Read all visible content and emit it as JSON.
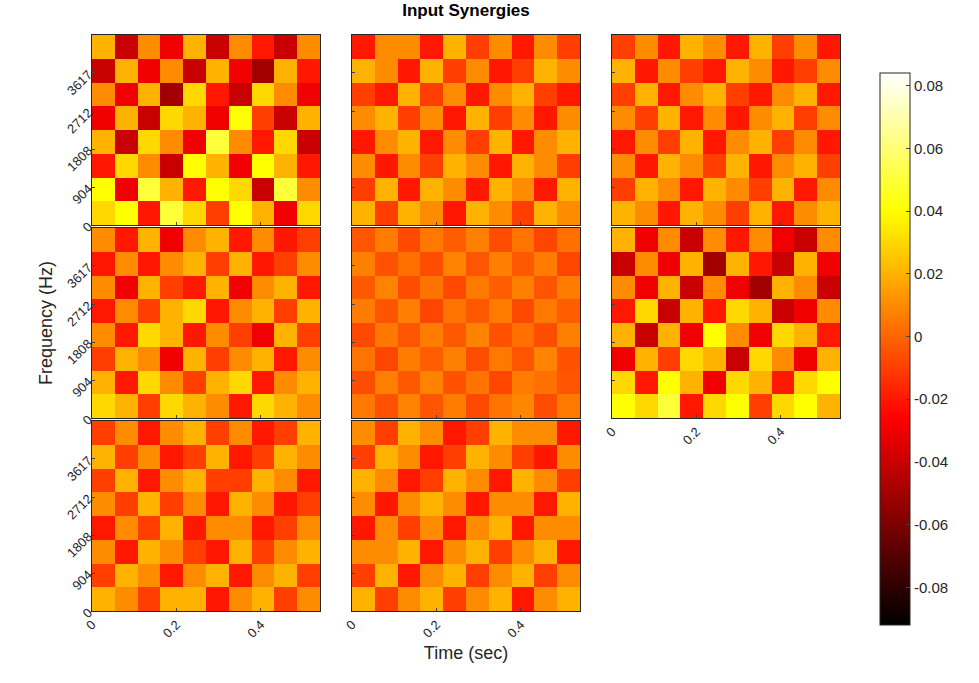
{
  "chart_data": {
    "type": "heatmap",
    "title": "Input Synergies",
    "x_label": "Time (sec)",
    "y_label": "Frequency (Hz)",
    "xlim": [
      0,
      0.54
    ],
    "ylim": [
      0,
      4521
    ],
    "xticks": [
      0,
      0.2,
      0.4
    ],
    "yticks": [
      0,
      904,
      1808,
      2712,
      3617
    ],
    "x": [
      0.027,
      0.081,
      0.135,
      0.189,
      0.243,
      0.297,
      0.351,
      0.405,
      0.459,
      0.513
    ],
    "y": [
      282.6,
      847.7,
      1412.8,
      1978.0,
      2543.1,
      3108.2,
      3673.3,
      4238.4
    ],
    "colorbar": {
      "range": [
        -0.092,
        0.084
      ],
      "ticks": [
        -0.08,
        -0.06,
        -0.04,
        -0.02,
        0,
        0.02,
        0.04,
        0.06,
        0.08
      ]
    },
    "panels": [
      {
        "tick_labels": "y",
        "cells": [
          [
            0.03,
            0.04,
            -0.02,
            0.05,
            0.03,
            -0.01,
            0.04,
            0.02,
            -0.03,
            0.03
          ],
          [
            0.04,
            -0.03,
            0.05,
            0.02,
            -0.02,
            0.04,
            0.03,
            -0.04,
            0.05,
            0.01
          ],
          [
            -0.02,
            0.03,
            0.01,
            -0.04,
            0.04,
            0.02,
            -0.03,
            0.04,
            0.02,
            -0.02
          ],
          [
            0.02,
            -0.04,
            0.03,
            0.01,
            -0.03,
            0.05,
            0.01,
            -0.02,
            0.03,
            -0.04
          ],
          [
            -0.03,
            0.02,
            -0.04,
            0.03,
            0.02,
            -0.03,
            0.04,
            -0.01,
            -0.04,
            0.02
          ],
          [
            0.01,
            -0.03,
            0.02,
            -0.05,
            0.03,
            -0.02,
            -0.04,
            0.03,
            0.01,
            -0.03
          ],
          [
            -0.04,
            0.02,
            -0.03,
            0.01,
            -0.04,
            0.02,
            -0.03,
            -0.05,
            0.02,
            -0.02
          ],
          [
            0.02,
            -0.04,
            0.01,
            -0.03,
            0.02,
            -0.04,
            0.01,
            -0.02,
            -0.04,
            0.01
          ]
        ]
      },
      {
        "tick_labels": false,
        "cells": [
          [
            0.02,
            -0.01,
            0.02,
            0.01,
            -0.02,
            0.02,
            0.01,
            -0.01,
            0.02,
            0.01
          ],
          [
            -0.01,
            0.02,
            -0.02,
            0.02,
            0.01,
            -0.02,
            0.02,
            0.01,
            -0.02,
            0.02
          ],
          [
            0.01,
            -0.02,
            0.01,
            -0.01,
            0.02,
            0.01,
            -0.02,
            0.02,
            0.01,
            -0.01
          ],
          [
            -0.02,
            0.01,
            0.02,
            -0.02,
            0.01,
            -0.01,
            0.02,
            -0.02,
            0.01,
            0.02
          ],
          [
            0.01,
            0.02,
            -0.01,
            0.01,
            -0.02,
            0.02,
            -0.01,
            0.01,
            -0.02,
            0.01
          ],
          [
            -0.01,
            -0.02,
            0.02,
            -0.01,
            0.01,
            -0.02,
            0.01,
            0.02,
            -0.01,
            -0.02
          ],
          [
            0.02,
            0.01,
            -0.02,
            0.02,
            -0.01,
            0.01,
            -0.02,
            -0.01,
            0.02,
            0.01
          ],
          [
            -0.02,
            0.01,
            0.01,
            -0.02,
            0.02,
            -0.01,
            0.01,
            -0.02,
            0.01,
            -0.01
          ]
        ]
      },
      {
        "tick_labels": false,
        "cells": [
          [
            0.02,
            0.01,
            -0.02,
            0.02,
            0.01,
            -0.01,
            0.02,
            -0.02,
            0.01,
            0.02
          ],
          [
            -0.01,
            0.02,
            0.01,
            -0.02,
            0.02,
            0.01,
            -0.01,
            0.02,
            -0.02,
            0.01
          ],
          [
            0.01,
            -0.02,
            0.02,
            0.01,
            -0.01,
            0.02,
            -0.02,
            0.01,
            0.02,
            -0.01
          ],
          [
            -0.02,
            0.01,
            -0.01,
            0.02,
            -0.02,
            0.01,
            0.02,
            -0.01,
            0.01,
            -0.02
          ],
          [
            0.01,
            -0.01,
            0.02,
            -0.02,
            0.01,
            -0.02,
            0.01,
            0.02,
            -0.01,
            0.01
          ],
          [
            -0.01,
            0.02,
            -0.02,
            0.01,
            0.02,
            -0.01,
            -0.02,
            0.01,
            0.02,
            -0.02
          ],
          [
            0.02,
            -0.02,
            0.01,
            -0.01,
            -0.02,
            0.02,
            0.01,
            -0.02,
            -0.01,
            0.01
          ],
          [
            -0.01,
            0.01,
            -0.02,
            0.02,
            0.01,
            -0.02,
            0.02,
            -0.01,
            0.01,
            -0.02
          ]
        ]
      },
      {
        "tick_labels": "y",
        "cells": [
          [
            0.03,
            0.02,
            -0.01,
            0.03,
            0.02,
            0.01,
            -0.02,
            0.03,
            0.02,
            0.01
          ],
          [
            0.02,
            -0.02,
            0.03,
            0.01,
            -0.01,
            0.02,
            0.03,
            -0.02,
            0.01,
            0.02
          ],
          [
            -0.01,
            0.02,
            0.01,
            -0.03,
            0.02,
            -0.01,
            0.01,
            0.02,
            -0.02,
            0.01
          ],
          [
            0.01,
            -0.02,
            0.03,
            0.02,
            -0.02,
            0.01,
            -0.01,
            -0.03,
            0.02,
            -0.01
          ],
          [
            -0.02,
            0.01,
            -0.01,
            0.02,
            0.03,
            -0.02,
            0.01,
            0.02,
            -0.01,
            0.02
          ],
          [
            0.01,
            -0.03,
            0.02,
            -0.01,
            -0.02,
            0.02,
            -0.03,
            0.01,
            0.02,
            -0.02
          ],
          [
            -0.02,
            0.01,
            -0.02,
            0.01,
            0.02,
            -0.01,
            0.02,
            -0.02,
            -0.01,
            0.01
          ],
          [
            0.01,
            -0.02,
            0.02,
            -0.03,
            0.01,
            0.02,
            -0.02,
            0.01,
            -0.02,
            -0.01
          ]
        ]
      },
      {
        "tick_labels": false,
        "cells": [
          [
            0.005,
            -0.005,
            0.008,
            -0.004,
            0.006,
            -0.007,
            0.004,
            0.009,
            -0.006,
            0.005
          ],
          [
            -0.006,
            0.007,
            -0.003,
            0.008,
            -0.005,
            0.004,
            -0.008,
            0.006,
            0.003,
            -0.004
          ],
          [
            0.004,
            -0.008,
            0.006,
            -0.002,
            0.007,
            -0.006,
            0.005,
            -0.004,
            0.008,
            -0.005
          ],
          [
            -0.007,
            0.005,
            -0.004,
            0.006,
            -0.003,
            0.008,
            -0.005,
            0.003,
            -0.006,
            0.007
          ],
          [
            0.006,
            -0.004,
            0.007,
            -0.008,
            0.004,
            -0.003,
            0.006,
            -0.007,
            0.005,
            -0.002
          ],
          [
            -0.003,
            0.008,
            -0.006,
            0.004,
            -0.007,
            0.005,
            -0.002,
            0.007,
            -0.004,
            0.006
          ],
          [
            0.007,
            -0.005,
            0.003,
            -0.006,
            0.008,
            -0.004,
            0.007,
            -0.003,
            0.006,
            -0.008
          ],
          [
            -0.004,
            0.006,
            -0.007,
            0.005,
            -0.002,
            0.007,
            -0.006,
            0.004,
            -0.008,
            0.003
          ]
        ]
      },
      {
        "tick_labels": "x",
        "cells": [
          [
            0.04,
            0.03,
            0.05,
            -0.02,
            0.03,
            0.04,
            -0.01,
            0.03,
            0.04,
            0.02
          ],
          [
            0.03,
            -0.02,
            0.04,
            0.02,
            -0.03,
            0.03,
            0.02,
            -0.02,
            0.03,
            0.04
          ],
          [
            -0.03,
            0.02,
            -0.01,
            0.03,
            0.02,
            -0.04,
            0.03,
            0.01,
            -0.03,
            0.02
          ],
          [
            0.02,
            -0.04,
            0.02,
            -0.03,
            0.04,
            0.01,
            -0.03,
            0.03,
            0.02,
            -0.02
          ],
          [
            -0.02,
            0.03,
            -0.04,
            0.02,
            -0.02,
            0.03,
            0.02,
            -0.04,
            -0.03,
            0.01
          ],
          [
            0.01,
            -0.03,
            0.02,
            -0.04,
            0.01,
            -0.03,
            -0.05,
            0.02,
            0.01,
            -0.04
          ],
          [
            -0.04,
            0.01,
            -0.03,
            0.02,
            -0.05,
            0.02,
            -0.02,
            -0.04,
            0.02,
            -0.03
          ],
          [
            0.02,
            -0.03,
            0.01,
            -0.04,
            0.01,
            -0.02,
            0.01,
            -0.03,
            -0.04,
            0.01
          ]
        ]
      },
      {
        "tick_labels": true,
        "cells": [
          [
            0.02,
            0.01,
            -0.01,
            0.02,
            0.02,
            -0.02,
            0.01,
            0.02,
            -0.01,
            0.01
          ],
          [
            -0.01,
            0.02,
            0.01,
            -0.02,
            0.01,
            0.02,
            -0.02,
            0.01,
            0.02,
            -0.01
          ],
          [
            0.01,
            -0.02,
            0.02,
            0.01,
            -0.01,
            -0.02,
            0.02,
            -0.01,
            0.01,
            0.02
          ],
          [
            -0.02,
            0.01,
            -0.01,
            0.02,
            -0.02,
            0.01,
            0.01,
            -0.02,
            -0.01,
            0.01
          ],
          [
            0.01,
            -0.01,
            0.02,
            -0.01,
            0.01,
            -0.02,
            0.02,
            0.01,
            -0.02,
            -0.01
          ],
          [
            -0.01,
            0.02,
            -0.02,
            0.01,
            0.02,
            -0.01,
            -0.01,
            0.02,
            0.01,
            -0.02
          ],
          [
            0.02,
            -0.01,
            0.01,
            -0.02,
            -0.01,
            0.02,
            -0.02,
            -0.01,
            0.02,
            0.01
          ],
          [
            -0.01,
            0.01,
            -0.02,
            0.01,
            0.02,
            -0.01,
            0.01,
            -0.02,
            -0.01,
            0.02
          ]
        ]
      },
      {
        "tick_labels": "x",
        "cells": [
          [
            0.02,
            -0.01,
            0.01,
            0.02,
            -0.01,
            0.01,
            0.02,
            -0.02,
            0.01,
            0.02
          ],
          [
            -0.01,
            0.02,
            -0.02,
            0.01,
            0.02,
            -0.01,
            0.01,
            0.02,
            -0.01,
            0.01
          ],
          [
            0.01,
            0.01,
            0.02,
            -0.02,
            0.01,
            0.02,
            -0.01,
            0.01,
            0.02,
            -0.02
          ],
          [
            -0.02,
            0.01,
            -0.01,
            0.01,
            -0.02,
            0.01,
            0.02,
            -0.02,
            0.01,
            0.01
          ],
          [
            0.01,
            -0.02,
            0.01,
            0.02,
            0.01,
            -0.02,
            0.01,
            0.01,
            -0.02,
            0.02
          ],
          [
            0.02,
            0.01,
            -0.02,
            -0.01,
            0.02,
            0.01,
            -0.02,
            0.02,
            0.01,
            -0.01
          ],
          [
            -0.01,
            0.02,
            0.01,
            -0.02,
            -0.01,
            0.02,
            0.01,
            -0.01,
            -0.02,
            0.01
          ],
          [
            0.01,
            -0.01,
            0.02,
            0.01,
            -0.02,
            -0.01,
            0.02,
            0.01,
            0.01,
            -0.02
          ]
        ]
      }
    ]
  }
}
